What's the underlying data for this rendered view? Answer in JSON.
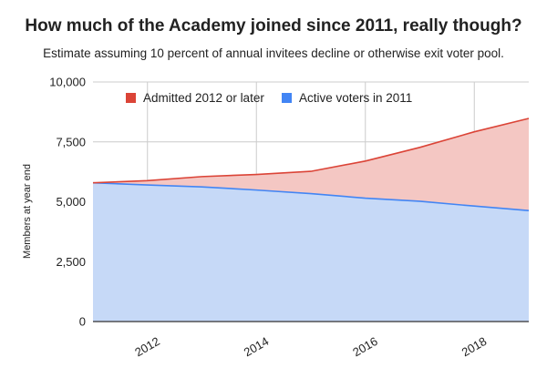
{
  "title": "How much of the Academy joined since 2011, really though?",
  "subtitle": "Estimate assuming 10 percent of annual invitees decline or otherwise exit voter pool.",
  "chart_data": {
    "type": "area",
    "stacked": true,
    "x": [
      2011,
      2012,
      2013,
      2014,
      2015,
      2016,
      2017,
      2018,
      2019
    ],
    "series": [
      {
        "name": "Admitted 2012 or later",
        "color": "#db4437",
        "fill": "#f4c7c3",
        "values": [
          0,
          180,
          430,
          650,
          930,
          1550,
          2250,
          3100,
          3850
        ]
      },
      {
        "name": "Active voters in 2011",
        "color": "#4285f4",
        "fill": "#c6d9f7",
        "values": [
          5790,
          5700,
          5620,
          5490,
          5340,
          5150,
          5020,
          4820,
          4630
        ]
      }
    ],
    "xlabel": "",
    "ylabel": "Members at year end",
    "ylim": [
      0,
      10000
    ],
    "xlim": [
      2011,
      2019
    ],
    "yticks": [
      "0",
      "2,500",
      "5,000",
      "7,500",
      "10,000"
    ],
    "ytick_values": [
      0,
      2500,
      5000,
      7500,
      10000
    ],
    "xticks": [
      "2012",
      "2014",
      "2016",
      "2018"
    ],
    "xtick_values": [
      2012,
      2014,
      2016,
      2018
    ],
    "grid": true,
    "legend_position": "top"
  }
}
